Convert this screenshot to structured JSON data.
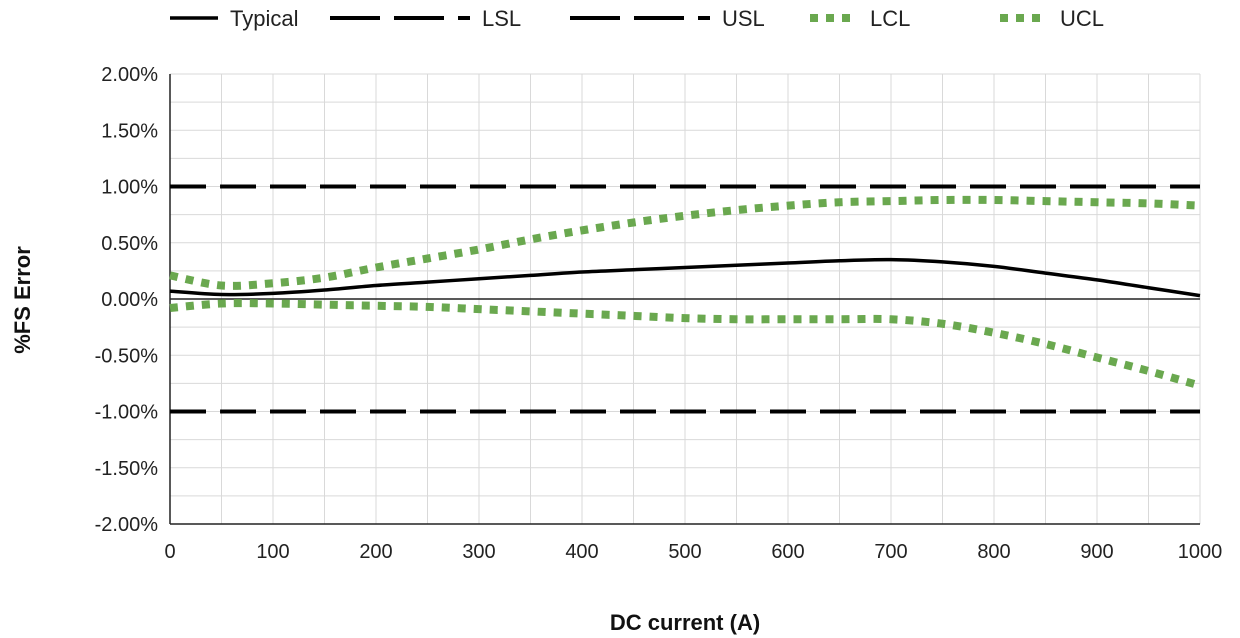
{
  "chart_data": {
    "type": "line",
    "title": "",
    "xlabel": "DC current (A)",
    "ylabel": "%FS Error",
    "xlim": [
      0,
      1000
    ],
    "ylim": [
      -2.0,
      2.0
    ],
    "x_ticks": [
      0,
      100,
      200,
      300,
      400,
      500,
      600,
      700,
      800,
      900,
      1000
    ],
    "y_ticks": [
      2.0,
      1.5,
      1.0,
      0.5,
      0.0,
      -0.5,
      -1.0,
      -1.5,
      -2.0
    ],
    "x_tick_labels": [
      "0",
      "100",
      "200",
      "300",
      "400",
      "500",
      "600",
      "700",
      "800",
      "900",
      "1000"
    ],
    "y_tick_labels": [
      "2.00%",
      "1.50%",
      "1.00%",
      "0.50%",
      "0.00%",
      "-0.50%",
      "-1.00%",
      "-1.50%",
      "-2.00%"
    ],
    "grid": true,
    "legend_position": "top",
    "x": [
      0,
      50,
      100,
      150,
      200,
      250,
      300,
      350,
      400,
      450,
      500,
      550,
      600,
      650,
      700,
      750,
      800,
      850,
      900,
      950,
      1000
    ],
    "series": [
      {
        "name": "Typical",
        "color": "#000000",
        "style": "solid",
        "values": [
          0.07,
          0.04,
          0.05,
          0.08,
          0.12,
          0.15,
          0.18,
          0.21,
          0.24,
          0.26,
          0.28,
          0.3,
          0.32,
          0.34,
          0.35,
          0.33,
          0.29,
          0.23,
          0.17,
          0.1,
          0.03
        ]
      },
      {
        "name": "LSL",
        "color": "#000000",
        "style": "dashed",
        "values": [
          -1.0,
          -1.0,
          -1.0,
          -1.0,
          -1.0,
          -1.0,
          -1.0,
          -1.0,
          -1.0,
          -1.0,
          -1.0,
          -1.0,
          -1.0,
          -1.0,
          -1.0,
          -1.0,
          -1.0,
          -1.0,
          -1.0,
          -1.0,
          -1.0
        ]
      },
      {
        "name": "USL",
        "color": "#000000",
        "style": "dashed",
        "values": [
          1.0,
          1.0,
          1.0,
          1.0,
          1.0,
          1.0,
          1.0,
          1.0,
          1.0,
          1.0,
          1.0,
          1.0,
          1.0,
          1.0,
          1.0,
          1.0,
          1.0,
          1.0,
          1.0,
          1.0,
          1.0
        ]
      },
      {
        "name": "LCL",
        "color": "#6aa84f",
        "style": "dotted",
        "values": [
          -0.08,
          -0.04,
          -0.04,
          -0.05,
          -0.06,
          -0.07,
          -0.09,
          -0.11,
          -0.13,
          -0.15,
          -0.17,
          -0.18,
          -0.18,
          -0.18,
          -0.18,
          -0.22,
          -0.3,
          -0.4,
          -0.52,
          -0.64,
          -0.77
        ]
      },
      {
        "name": "UCL",
        "color": "#6aa84f",
        "style": "dotted",
        "values": [
          0.21,
          0.12,
          0.14,
          0.19,
          0.28,
          0.36,
          0.44,
          0.53,
          0.61,
          0.68,
          0.74,
          0.79,
          0.83,
          0.86,
          0.87,
          0.88,
          0.88,
          0.87,
          0.86,
          0.85,
          0.83
        ]
      }
    ]
  }
}
